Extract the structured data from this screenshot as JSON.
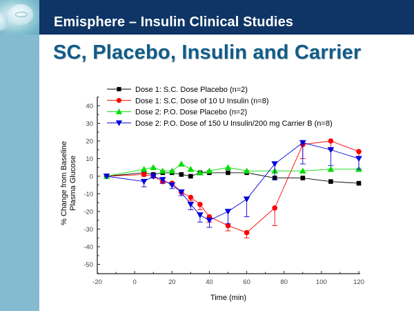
{
  "header": {
    "title": "Emisphere – Insulin Clinical Studies"
  },
  "slide": {
    "title": "SC, Placebo, Insulin and Carrier"
  },
  "colors": {
    "header_band": "#0e3565",
    "side_band": "#7fb8cf",
    "slide_title": "#0f5c8a"
  },
  "chart_data": {
    "type": "line",
    "title": "",
    "xlabel": "Time (min)",
    "ylabel_lines": [
      "% Change from Baseline",
      "Plasma Glucose"
    ],
    "xlim": [
      -20,
      120
    ],
    "ylim": [
      -55,
      45
    ],
    "x_ticks": [
      -20,
      0,
      20,
      40,
      60,
      80,
      100,
      120
    ],
    "y_ticks": [
      -50,
      -40,
      -30,
      -20,
      -10,
      0,
      10,
      20,
      30,
      40
    ],
    "grid": false,
    "legend_position": "top",
    "series": [
      {
        "name": "Dose 1: S.C. Dose Placebo (n=2)",
        "color": "#000000",
        "marker": "square",
        "x": [
          -15,
          5,
          10,
          15,
          20,
          25,
          30,
          35,
          40,
          50,
          60,
          75,
          90,
          105,
          120
        ],
        "y": [
          0,
          2,
          1,
          2,
          2,
          1,
          0,
          2,
          2,
          2,
          2,
          -1,
          -1,
          -3,
          -4
        ],
        "err": []
      },
      {
        "name": "Dose 1: S.C. Dose of 10 U Insulin (n=8)",
        "color": "#ff0000",
        "marker": "circle",
        "x": [
          -15,
          5,
          10,
          15,
          20,
          25,
          30,
          35,
          40,
          50,
          60,
          75,
          90,
          105,
          120
        ],
        "y": [
          0,
          1,
          0,
          -3,
          -4,
          -9,
          -12,
          -16,
          -23,
          -28,
          -32,
          -18,
          18,
          20,
          14
        ],
        "err": [
          0,
          1,
          1,
          1,
          1,
          2,
          2,
          3,
          3,
          3,
          3,
          10,
          8,
          5,
          10
        ]
      },
      {
        "name": "Dose 2: P.O. Dose Placebo (n=2)",
        "color": "#00dd00",
        "marker": "triangle-up",
        "x": [
          -15,
          5,
          10,
          15,
          20,
          25,
          30,
          35,
          40,
          50,
          60,
          75,
          90,
          105,
          120
        ],
        "y": [
          0,
          4,
          5,
          3,
          3,
          7,
          4,
          2,
          3,
          5,
          3,
          3,
          3,
          4,
          4
        ],
        "err": []
      },
      {
        "name": "Dose 2: P.O. Dose of 150 U Insulin/200 mg Carrier B (n=8)",
        "color": "#0000dd",
        "marker": "triangle-down",
        "x": [
          -15,
          5,
          10,
          15,
          20,
          25,
          30,
          35,
          40,
          50,
          60,
          75,
          90,
          105,
          120
        ],
        "y": [
          0,
          -3,
          0,
          -2,
          -5,
          -9,
          -16,
          -22,
          -25,
          -20,
          -13,
          7,
          19,
          15,
          10
        ],
        "err": [
          0,
          3,
          1,
          2,
          2,
          2,
          3,
          4,
          4,
          7,
          10,
          9,
          12,
          9,
          6
        ]
      }
    ]
  }
}
